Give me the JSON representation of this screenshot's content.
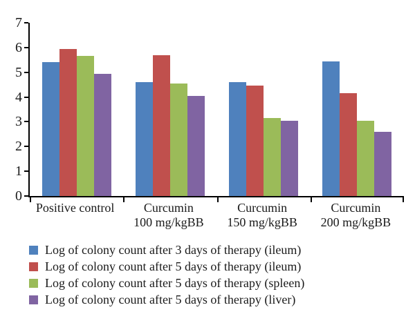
{
  "chart_data": {
    "type": "bar",
    "title": "",
    "xlabel": "",
    "ylabel": "",
    "categories": [
      "Positive control",
      "Curcumin 100 mg/kgBB",
      "Curcumin 150 mg/kgBB",
      "Curcumin 200 mg/kgBB"
    ],
    "category_label_lines": [
      [
        "Positive control"
      ],
      [
        "Curcumin",
        "100 mg/kgBB"
      ],
      [
        "Curcumin",
        "150 mg/kgBB"
      ],
      [
        "Curcumin",
        "200 mg/kgBB"
      ]
    ],
    "series": [
      {
        "name": "Log of colony count after 3 days of therapy (ileum)",
        "color": "#4F81BD",
        "values": [
          5.4,
          4.6,
          4.6,
          5.45
        ]
      },
      {
        "name": "Log of colony count after 5 days of therapy (ileum)",
        "color": "#C0504D",
        "values": [
          5.95,
          5.7,
          4.45,
          4.15
        ]
      },
      {
        "name": "Log of colony count after 5 days of therapy (spleen)",
        "color": "#9BBB59",
        "values": [
          5.65,
          4.55,
          3.15,
          3.05
        ]
      },
      {
        "name": "Log of colony count after 5 days of therapy (liver)",
        "color": "#8064A2",
        "values": [
          4.95,
          4.05,
          3.05,
          2.6
        ]
      }
    ],
    "ylim": [
      0,
      7
    ],
    "yticks": [
      0,
      1,
      2,
      3,
      4,
      5,
      6,
      7
    ],
    "grid": false,
    "legend_position": "bottom-left",
    "axis_color": "#000000",
    "background_color": "#ffffff"
  }
}
